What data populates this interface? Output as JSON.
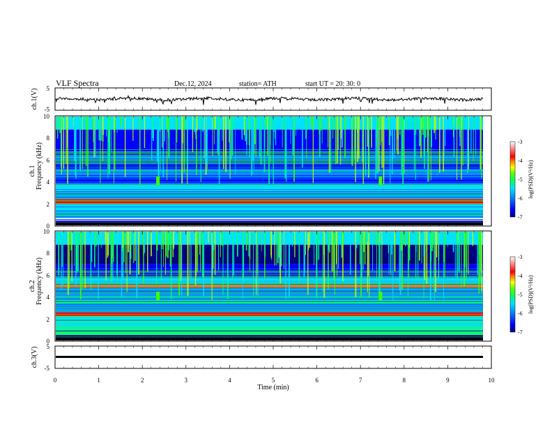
{
  "header": {
    "title": "VLF  Spectra",
    "date": "Dec.12, 2024",
    "station": "station= ATH",
    "start": "start  UT  =    20: 30: 0"
  },
  "chart_data": [
    {
      "type": "line",
      "name": "ch1",
      "ylabel": "ch.1(V)",
      "ylim": [
        -5,
        5
      ],
      "yticks": [
        "5",
        "-5"
      ],
      "xlim": [
        0,
        10
      ]
    },
    {
      "type": "heatmap",
      "name": "ch1-spectrogram",
      "ylabel": "ch.1\nFrequency (kHz)",
      "ylim": [
        0,
        10
      ],
      "yticks": [
        "10",
        "8",
        "6",
        "4",
        "2",
        "0"
      ],
      "colorbar": {
        "label": "log(PSD)(V²/Hz)",
        "range": [
          -7,
          -3
        ],
        "ticks": [
          "-3",
          "-4",
          "-5",
          "-6",
          "-7"
        ]
      }
    },
    {
      "type": "heatmap",
      "name": "ch2-spectrogram",
      "ylabel": "ch.2\nFrequency (kHz)",
      "ylim": [
        0,
        10
      ],
      "yticks": [
        "10",
        "8",
        "6",
        "4",
        "2",
        "0"
      ],
      "colorbar": {
        "label": "log(PSD)(V²/Hz)",
        "range": [
          -7,
          -3
        ],
        "ticks": [
          "-3",
          "-4",
          "-5",
          "-6",
          "-7"
        ]
      }
    },
    {
      "type": "line",
      "name": "ch3",
      "ylabel": "ch.3(V)",
      "ylim": [
        -5,
        5
      ],
      "yticks": [
        "5",
        "-5"
      ],
      "xlim": [
        0,
        10
      ],
      "xlabel": "Time  (min)",
      "xticks": [
        "0",
        "1",
        "2",
        "3",
        "4",
        "5",
        "6",
        "7",
        "8",
        "9",
        "10"
      ]
    }
  ],
  "labels": {
    "ch1_v": "ch.1(V)",
    "ch1_a": "ch.1",
    "ch1_b": "Frequency (kHz)",
    "ch2_a": "ch.2",
    "ch2_b": "Frequency (kHz)",
    "ch3_v": "ch.3(V)",
    "cb_label": "log(PSD)(V²/Hz)"
  },
  "colors": {
    "colormap": [
      "#000080",
      "#0000ff",
      "#0080ff",
      "#00e0ff",
      "#00ff80",
      "#40ff00",
      "#c0ff00",
      "#ffff00",
      "#ff8000",
      "#ff0000",
      "#ffc0c0",
      "#ffffff"
    ]
  }
}
